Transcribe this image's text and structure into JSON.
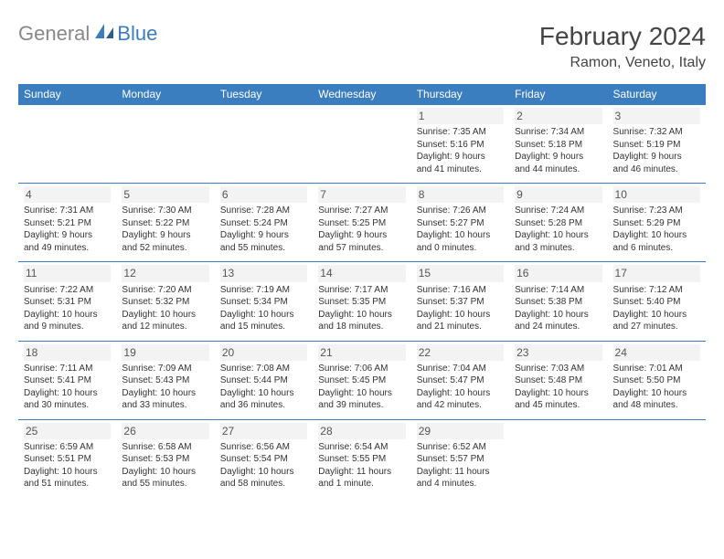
{
  "logo": {
    "general": "General",
    "blue": "Blue"
  },
  "header": {
    "title": "February 2024",
    "location": "Ramon, Veneto, Italy"
  },
  "colors": {
    "accent": "#3a7ebf",
    "headerText": "#ffffff",
    "bodyText": "#333333",
    "dayBg": "#f3f3f3"
  },
  "calendar": {
    "type": "table",
    "columns": [
      "Sunday",
      "Monday",
      "Tuesday",
      "Wednesday",
      "Thursday",
      "Friday",
      "Saturday"
    ],
    "weeks": [
      [
        null,
        null,
        null,
        null,
        {
          "n": "1",
          "sr": "Sunrise: 7:35 AM",
          "ss": "Sunset: 5:16 PM",
          "d1": "Daylight: 9 hours",
          "d2": "and 41 minutes."
        },
        {
          "n": "2",
          "sr": "Sunrise: 7:34 AM",
          "ss": "Sunset: 5:18 PM",
          "d1": "Daylight: 9 hours",
          "d2": "and 44 minutes."
        },
        {
          "n": "3",
          "sr": "Sunrise: 7:32 AM",
          "ss": "Sunset: 5:19 PM",
          "d1": "Daylight: 9 hours",
          "d2": "and 46 minutes."
        }
      ],
      [
        {
          "n": "4",
          "sr": "Sunrise: 7:31 AM",
          "ss": "Sunset: 5:21 PM",
          "d1": "Daylight: 9 hours",
          "d2": "and 49 minutes."
        },
        {
          "n": "5",
          "sr": "Sunrise: 7:30 AM",
          "ss": "Sunset: 5:22 PM",
          "d1": "Daylight: 9 hours",
          "d2": "and 52 minutes."
        },
        {
          "n": "6",
          "sr": "Sunrise: 7:28 AM",
          "ss": "Sunset: 5:24 PM",
          "d1": "Daylight: 9 hours",
          "d2": "and 55 minutes."
        },
        {
          "n": "7",
          "sr": "Sunrise: 7:27 AM",
          "ss": "Sunset: 5:25 PM",
          "d1": "Daylight: 9 hours",
          "d2": "and 57 minutes."
        },
        {
          "n": "8",
          "sr": "Sunrise: 7:26 AM",
          "ss": "Sunset: 5:27 PM",
          "d1": "Daylight: 10 hours",
          "d2": "and 0 minutes."
        },
        {
          "n": "9",
          "sr": "Sunrise: 7:24 AM",
          "ss": "Sunset: 5:28 PM",
          "d1": "Daylight: 10 hours",
          "d2": "and 3 minutes."
        },
        {
          "n": "10",
          "sr": "Sunrise: 7:23 AM",
          "ss": "Sunset: 5:29 PM",
          "d1": "Daylight: 10 hours",
          "d2": "and 6 minutes."
        }
      ],
      [
        {
          "n": "11",
          "sr": "Sunrise: 7:22 AM",
          "ss": "Sunset: 5:31 PM",
          "d1": "Daylight: 10 hours",
          "d2": "and 9 minutes."
        },
        {
          "n": "12",
          "sr": "Sunrise: 7:20 AM",
          "ss": "Sunset: 5:32 PM",
          "d1": "Daylight: 10 hours",
          "d2": "and 12 minutes."
        },
        {
          "n": "13",
          "sr": "Sunrise: 7:19 AM",
          "ss": "Sunset: 5:34 PM",
          "d1": "Daylight: 10 hours",
          "d2": "and 15 minutes."
        },
        {
          "n": "14",
          "sr": "Sunrise: 7:17 AM",
          "ss": "Sunset: 5:35 PM",
          "d1": "Daylight: 10 hours",
          "d2": "and 18 minutes."
        },
        {
          "n": "15",
          "sr": "Sunrise: 7:16 AM",
          "ss": "Sunset: 5:37 PM",
          "d1": "Daylight: 10 hours",
          "d2": "and 21 minutes."
        },
        {
          "n": "16",
          "sr": "Sunrise: 7:14 AM",
          "ss": "Sunset: 5:38 PM",
          "d1": "Daylight: 10 hours",
          "d2": "and 24 minutes."
        },
        {
          "n": "17",
          "sr": "Sunrise: 7:12 AM",
          "ss": "Sunset: 5:40 PM",
          "d1": "Daylight: 10 hours",
          "d2": "and 27 minutes."
        }
      ],
      [
        {
          "n": "18",
          "sr": "Sunrise: 7:11 AM",
          "ss": "Sunset: 5:41 PM",
          "d1": "Daylight: 10 hours",
          "d2": "and 30 minutes."
        },
        {
          "n": "19",
          "sr": "Sunrise: 7:09 AM",
          "ss": "Sunset: 5:43 PM",
          "d1": "Daylight: 10 hours",
          "d2": "and 33 minutes."
        },
        {
          "n": "20",
          "sr": "Sunrise: 7:08 AM",
          "ss": "Sunset: 5:44 PM",
          "d1": "Daylight: 10 hours",
          "d2": "and 36 minutes."
        },
        {
          "n": "21",
          "sr": "Sunrise: 7:06 AM",
          "ss": "Sunset: 5:45 PM",
          "d1": "Daylight: 10 hours",
          "d2": "and 39 minutes."
        },
        {
          "n": "22",
          "sr": "Sunrise: 7:04 AM",
          "ss": "Sunset: 5:47 PM",
          "d1": "Daylight: 10 hours",
          "d2": "and 42 minutes."
        },
        {
          "n": "23",
          "sr": "Sunrise: 7:03 AM",
          "ss": "Sunset: 5:48 PM",
          "d1": "Daylight: 10 hours",
          "d2": "and 45 minutes."
        },
        {
          "n": "24",
          "sr": "Sunrise: 7:01 AM",
          "ss": "Sunset: 5:50 PM",
          "d1": "Daylight: 10 hours",
          "d2": "and 48 minutes."
        }
      ],
      [
        {
          "n": "25",
          "sr": "Sunrise: 6:59 AM",
          "ss": "Sunset: 5:51 PM",
          "d1": "Daylight: 10 hours",
          "d2": "and 51 minutes."
        },
        {
          "n": "26",
          "sr": "Sunrise: 6:58 AM",
          "ss": "Sunset: 5:53 PM",
          "d1": "Daylight: 10 hours",
          "d2": "and 55 minutes."
        },
        {
          "n": "27",
          "sr": "Sunrise: 6:56 AM",
          "ss": "Sunset: 5:54 PM",
          "d1": "Daylight: 10 hours",
          "d2": "and 58 minutes."
        },
        {
          "n": "28",
          "sr": "Sunrise: 6:54 AM",
          "ss": "Sunset: 5:55 PM",
          "d1": "Daylight: 11 hours",
          "d2": "and 1 minute."
        },
        {
          "n": "29",
          "sr": "Sunrise: 6:52 AM",
          "ss": "Sunset: 5:57 PM",
          "d1": "Daylight: 11 hours",
          "d2": "and 4 minutes."
        },
        null,
        null
      ]
    ]
  }
}
